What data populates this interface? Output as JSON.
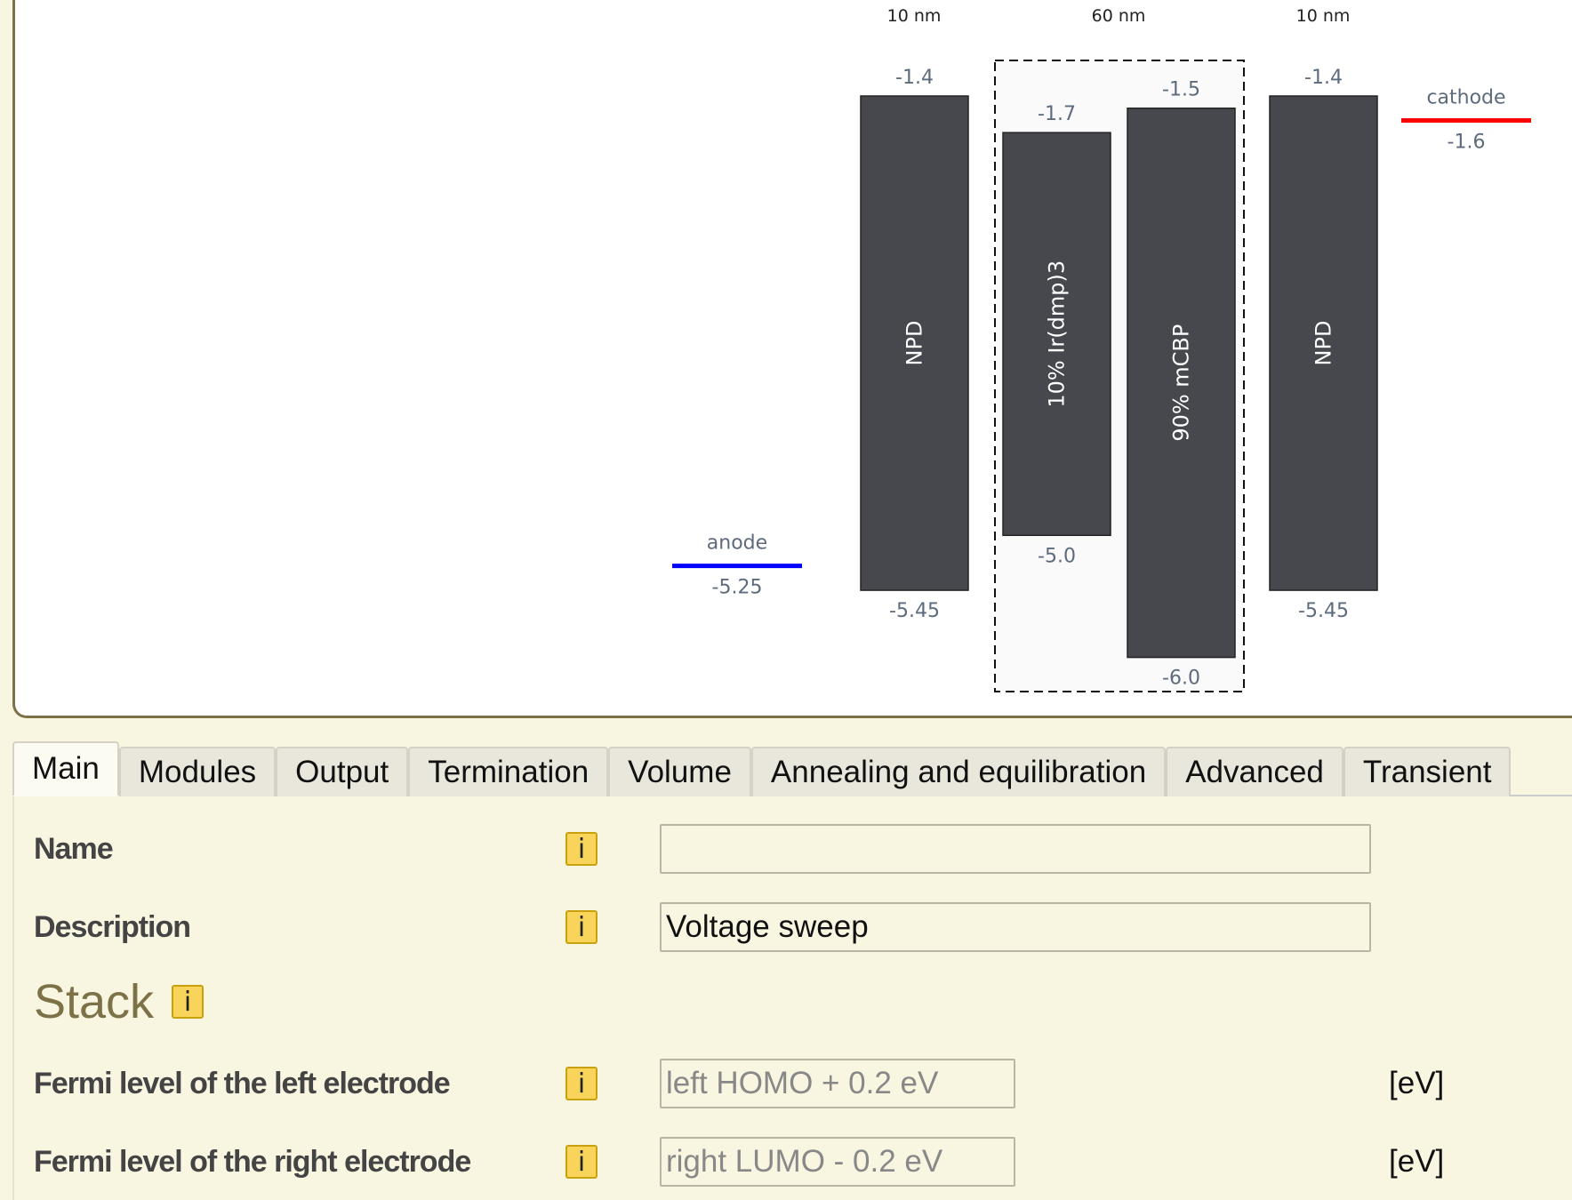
{
  "diagram": {
    "thickness_labels": [
      "10 nm",
      "60 nm",
      "10 nm"
    ],
    "anode": {
      "label": "anode",
      "value": "-5.25",
      "energy": -5.25,
      "color": "#0000ff"
    },
    "cathode": {
      "label": "cathode",
      "value": "-1.6",
      "energy": -1.6,
      "color": "#ff0000"
    },
    "layers": [
      {
        "name": "NPD",
        "lumo": -1.4,
        "homo": -5.45,
        "lumo_label": "-1.4",
        "homo_label": "-5.45"
      },
      {
        "name": "10% Ir(dmp)3",
        "lumo": -1.7,
        "homo": -5.0,
        "lumo_label": "-1.7",
        "homo_label": "-5.0"
      },
      {
        "name": "90% mCBP",
        "lumo": -1.5,
        "homo": -6.0,
        "lumo_label": "-1.5",
        "homo_label": "-6.0"
      },
      {
        "name": "NPD",
        "lumo": -1.4,
        "homo": -5.45,
        "lumo_label": "-1.4",
        "homo_label": "-5.45"
      }
    ],
    "layer_color": "#46484d",
    "label_color": "#5d6b7d"
  },
  "tabs": [
    "Main",
    "Modules",
    "Output",
    "Termination",
    "Volume",
    "Annealing and equilibration",
    "Advanced",
    "Transient"
  ],
  "active_tab": "Main",
  "form": {
    "info_glyph": "i",
    "name": {
      "label": "Name",
      "value": ""
    },
    "description": {
      "label": "Description",
      "value": "Voltage sweep"
    },
    "stack_heading": "Stack",
    "fermi_left": {
      "label": "Fermi level of the left electrode",
      "placeholder": "left HOMO + 0.2 eV",
      "unit": "[eV]"
    },
    "fermi_right": {
      "label": "Fermi level of the right electrode",
      "placeholder": "right LUMO - 0.2 eV",
      "unit": "[eV]"
    }
  }
}
